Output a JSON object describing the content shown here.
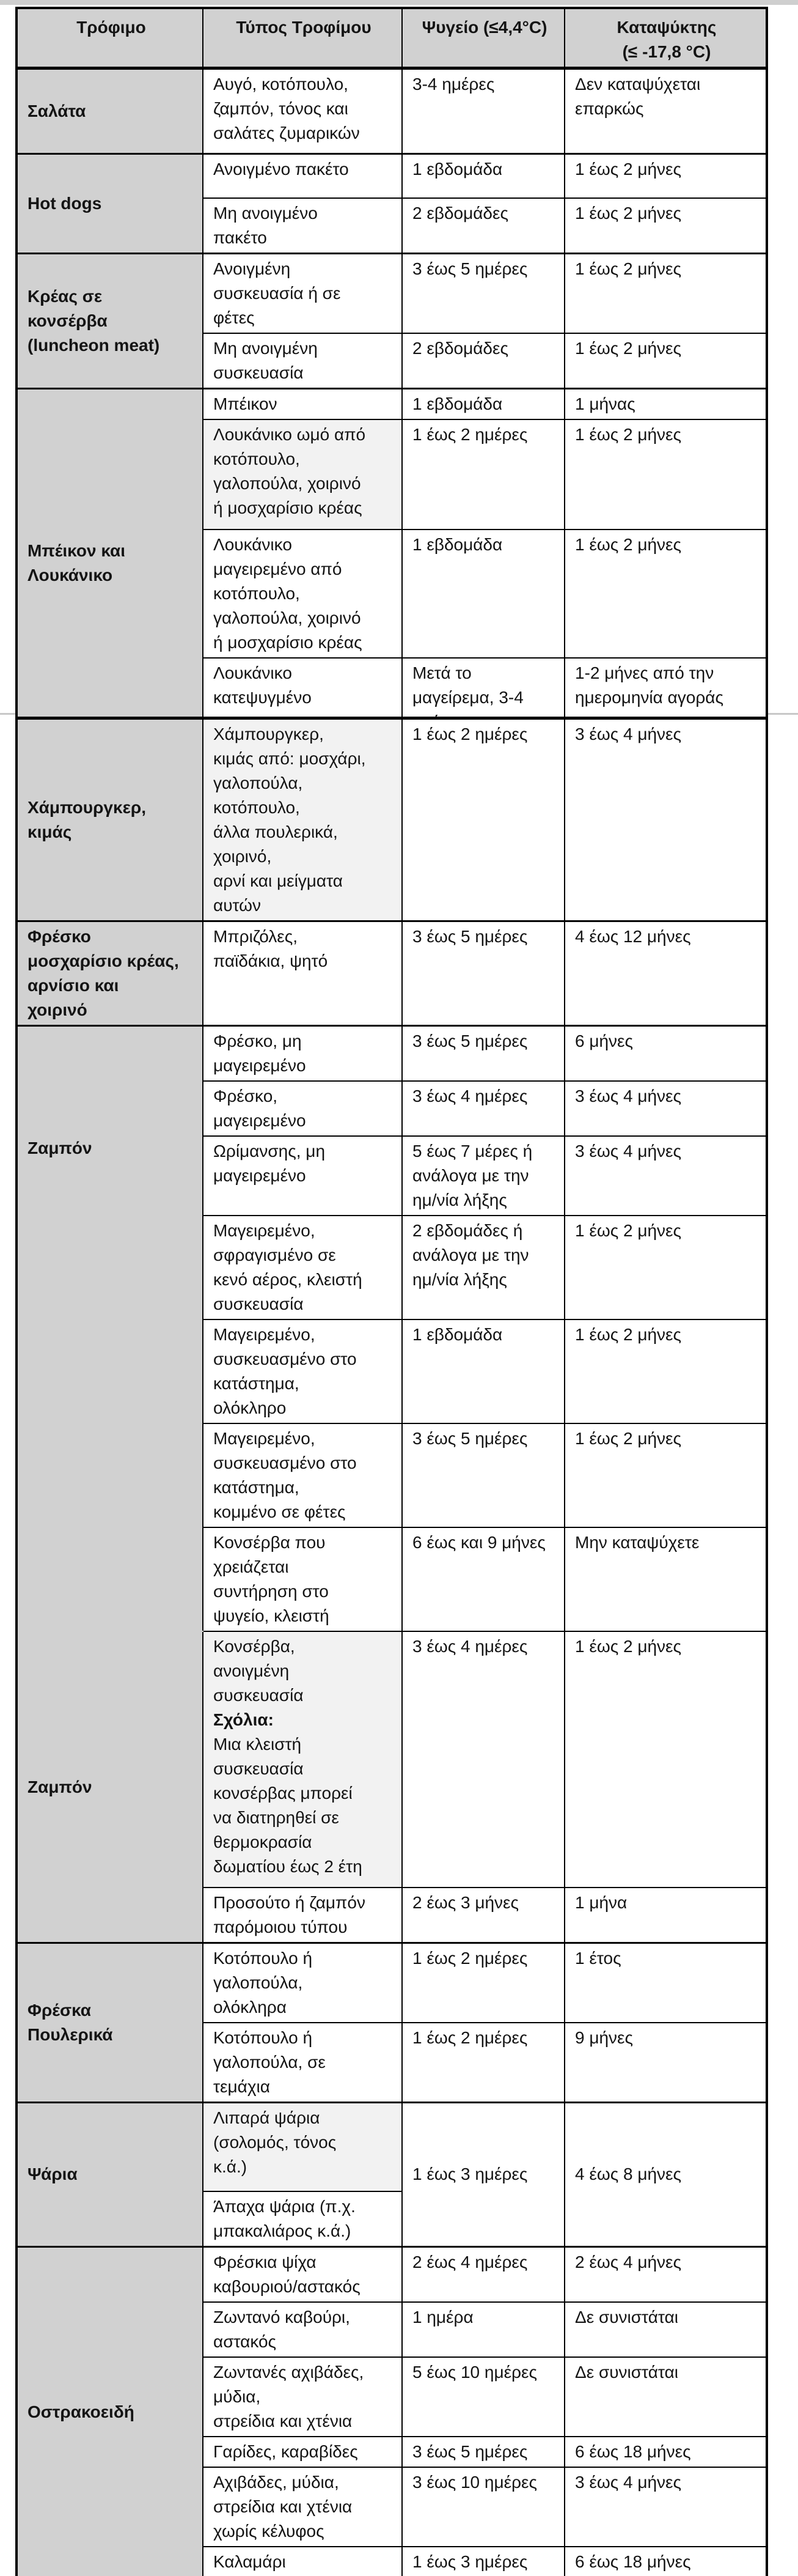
{
  "table": {
    "colors": {
      "header_bg": "#d1d1d1",
      "group_bg": "#d1d1d1",
      "shaded_cell_bg": "#f2f2f2",
      "border": "#000000",
      "page_seam_line": "#c8c8c8",
      "text": "#141414"
    },
    "header": {
      "col_food": "Τρόφιμο",
      "col_type": "Τύπος Τροφίμου",
      "col_fridge": "Ψυγείο (≤4,4°C)",
      "col_freezer": "Καταψύκτης\n(≤ -17,8 °C)"
    },
    "parts": [
      {
        "name": "part-1",
        "groups": [
          {
            "food": "Σαλάτα",
            "rows": [
              {
                "type": "Αυγό, κοτόπουλο,\nζαμπόν, τόνος και\nσαλάτες ζυμαρικών",
                "fridge": "3-4 ημέρες",
                "freezer": "Δεν καταψύχεται\nεπαρκώς"
              }
            ]
          },
          {
            "food": "Hot dogs",
            "rows": [
              {
                "type": "Ανοιγμένο πακέτο",
                "fridge": "1 εβδομάδα",
                "freezer": "1 έως 2 μήνες"
              },
              {
                "type": "Μη ανοιγμένο\nπακέτο",
                "fridge": "2 εβδομάδες",
                "freezer": "1 έως 2 μήνες"
              }
            ]
          },
          {
            "food": "Κρέας σε\nκονσέρβα\n(luncheon meat)",
            "rows": [
              {
                "type": "Ανοιγμένη\nσυσκευασία ή σε\nφέτες",
                "fridge": "3 έως 5 ημέρες",
                "freezer": "1 έως 2 μήνες"
              },
              {
                "type": "Μη ανοιγμένη\nσυσκευασία",
                "fridge": "2 εβδομάδες",
                "freezer": "1 έως 2 μήνες"
              }
            ]
          },
          {
            "food": "Μπέικον και\nΛουκάνικο",
            "rows": [
              {
                "type": "Μπέικον",
                "fridge": "1 εβδομάδα",
                "freezer": "1 μήνας"
              },
              {
                "type": "Λουκάνικο ωμό από\nκοτόπουλο,\nγαλοπούλα, χοιρινό\nή μοσχαρίσιο κρέας",
                "fridge": "1 έως 2 ημέρες",
                "freezer": "1 έως 2 μήνες",
                "shaded": true
              },
              {
                "type": "Λουκάνικο\nμαγειρεμένο από\nκοτόπουλο,\nγαλοπούλα, χοιρινό\nή μοσχαρίσιο κρέας",
                "fridge": "1 εβδομάδα",
                "freezer": "1 έως 2 μήνες"
              },
              {
                "type": "Λουκάνικο\nκατεψυγμένο",
                "fridge": "Μετά το\nμαγείρεμα, 3-4\nημέρες",
                "freezer": "1-2 μήνες από την\nημερομηνία αγοράς"
              }
            ]
          }
        ]
      },
      {
        "name": "part-2",
        "groups": [
          {
            "food": "Χάμπουργκερ,\nκιμάς",
            "rows": [
              {
                "type": "Χάμπουργκερ,\nκιμάς από: μοσχάρι,\nγαλοπούλα,\nκοτόπουλο,\nάλλα πουλερικά,\nχοιρινό,\nαρνί και μείγματα\nαυτών",
                "fridge": "1 έως 2 ημέρες",
                "freezer": "3 έως 4 μήνες",
                "shaded": true
              }
            ]
          },
          {
            "food": "Φρέσκο\nμοσχαρίσιο κρέας,\nαρνίσιο και\nχοιρινό",
            "rows": [
              {
                "type": "Μπριζόλες,\nπαϊδάκια, ψητό",
                "fridge": "3 έως 5 ημέρες",
                "freezer": "4 έως 12 μήνες"
              }
            ]
          },
          {
            "food": "Ζαμπόν",
            "label_offset": true,
            "hide_bottom": true,
            "rows": [
              {
                "type": "Φρέσκο, μη\nμαγειρεμένο",
                "fridge": "3 έως 5 ημέρες",
                "freezer": "6 μήνες"
              },
              {
                "type": "Φρέσκο,\nμαγειρεμένο",
                "fridge": "3 έως 4 ημέρες",
                "freezer": "3 έως 4 μήνες"
              },
              {
                "type": "Ωρίμανσης, μη\nμαγειρεμένο",
                "fridge": "5 έως 7 μέρες ή\nανάλογα με την\nημ/νία λήξης",
                "freezer": "3 έως 4 μήνες"
              },
              {
                "type": "Μαγειρεμένο,\nσφραγισμένο σε\nκενό αέρος, κλειστή\nσυσκευασία",
                "fridge": "2 εβδομάδες ή\nανάλογα με την\nημ/νία λήξης",
                "freezer": "1 έως 2 μήνες"
              },
              {
                "type": "Μαγειρεμένο,\nσυσκευασμένο στο\nκατάστημα,\nολόκληρο",
                "fridge": "1 εβδομάδα",
                "freezer": "1 έως 2 μήνες"
              },
              {
                "type": "Μαγειρεμένο,\nσυσκευασμένο στο\nκατάστημα,\nκομμένο σε φέτες",
                "fridge": "3 έως 5 ημέρες",
                "freezer": "1 έως 2 μήνες"
              },
              {
                "type": "Κονσέρβα που\nχρειάζεται\nσυντήρηση στο\nψυγείο, κλειστή",
                "fridge": "6 έως και 9 μήνες",
                "freezer": "Μην καταψύχετε"
              }
            ]
          },
          {
            "food": "Ζαμπόν",
            "hide_top": true,
            "thin_top": true,
            "rows": [
              {
                "type": "Κονσέρβα,\nανοιγμένη\nσυσκευασία",
                "note_label": "Σχόλια:",
                "note": "Μια κλειστή\nσυσκευασία\nκονσέρβας μπορεί\nνα διατηρηθεί σε\nθερμοκρασία\nδωματίου έως 2 έτη",
                "fridge": "3 έως 4 ημέρες",
                "freezer": "1 έως 2 μήνες",
                "shaded": true
              },
              {
                "type": "Προσούτο ή ζαμπόν\nπαρόμοιου τύπου",
                "fridge": "2 έως 3 μήνες",
                "freezer": "1 μήνα"
              }
            ]
          },
          {
            "food": "Φρέσκα\nΠουλερικά",
            "rows": [
              {
                "type": "Κοτόπουλο ή\nγαλοπούλα,\nολόκληρα",
                "fridge": "1 έως 2 ημέρες",
                "freezer": "1 έτος"
              },
              {
                "type": "Κοτόπουλο ή\nγαλοπούλα, σε\nτεμάχια",
                "fridge": "1 έως 2 ημέρες",
                "freezer": "9 μήνες"
              }
            ]
          },
          {
            "food": "Ψάρια",
            "merged": {
              "fridge": "1 έως 3 ημέρες",
              "freezer": "4 έως 8 μήνες"
            },
            "rows": [
              {
                "type": "Λιπαρά ψάρια\n(σολομός, τόνος\nκ.ά.)",
                "shaded": true
              },
              {
                "type": "Άπαχα ψάρια (π.χ.\nμπακαλιάρος κ.ά.)"
              }
            ]
          },
          {
            "food": "Οστρακοειδή",
            "rows": [
              {
                "type": "Φρέσκια ψίχα\nκαβουριού/αστακός",
                "fridge": "2 έως 4 ημέρες",
                "freezer": "2 έως 4 μήνες"
              },
              {
                "type": "Ζωντανό καβούρι,\nαστακός",
                "fridge": "1 ημέρα",
                "freezer": "Δε συνιστάται"
              },
              {
                "type": "Ζωντανές αχιβάδες,\nμύδια,\nστρείδια και χτένια",
                "fridge": "5 έως 10 ημέρες",
                "freezer": "Δε συνιστάται"
              },
              {
                "type": "Γαρίδες, καραβίδες",
                "fridge": "3 έως 5 ημέρες",
                "freezer": "6 έως 18 μήνες"
              },
              {
                "type": "Αχιβάδες, μύδια,\nστρείδια  και χτένια\nχωρίς κέλυφος",
                "fridge": "3 έως 10 ημέρες",
                "freezer": "3 έως 4 μήνες"
              },
              {
                "type": "Καλαμάρι",
                "fridge": "1 έως 3 ημέρες",
                "freezer": "6 έως 18 μήνες"
              }
            ]
          }
        ]
      }
    ]
  }
}
